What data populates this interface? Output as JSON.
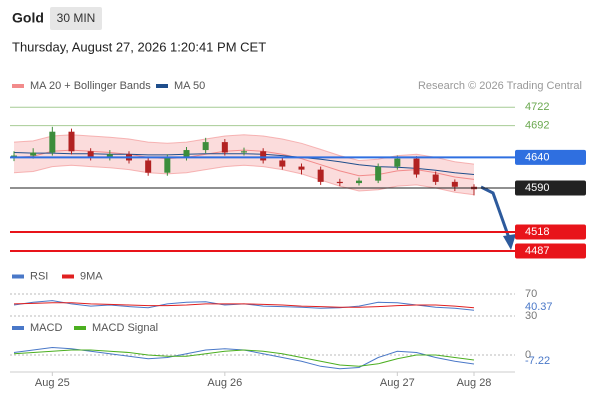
{
  "header": {
    "symbol": "Gold",
    "timeframe": "30 MIN",
    "datetime": "Thursday, August 27, 2026 1:20:41 PM CET"
  },
  "chart_data": [
    {
      "type": "candlestick",
      "credit": "Research © 2026 Trading Central",
      "categories": [
        null,
        null,
        "Aug 25",
        null,
        null,
        null,
        null,
        null,
        null,
        null,
        null,
        "Aug 26",
        null,
        null,
        null,
        null,
        null,
        null,
        null,
        null,
        "Aug 27",
        null,
        null,
        null,
        "Aug 28"
      ],
      "ohlc": [
        [
          4640,
          4650,
          4634,
          4643
        ],
        [
          4643,
          4655,
          4638,
          4648
        ],
        [
          4648,
          4690,
          4643,
          4682
        ],
        [
          4682,
          4687,
          4645,
          4650
        ],
        [
          4650,
          4655,
          4635,
          4640
        ],
        [
          4640,
          4652,
          4635,
          4645
        ],
        [
          4645,
          4650,
          4630,
          4635
        ],
        [
          4635,
          4640,
          4610,
          4615
        ],
        [
          4615,
          4645,
          4610,
          4640
        ],
        [
          4640,
          4657,
          4635,
          4652
        ],
        [
          4652,
          4672,
          4647,
          4665
        ],
        [
          4665,
          4670,
          4643,
          4648
        ],
        [
          4648,
          4656,
          4643,
          4650
        ],
        [
          4650,
          4655,
          4630,
          4635
        ],
        [
          4635,
          4640,
          4620,
          4625
        ],
        [
          4625,
          4630,
          4612,
          4620
        ],
        [
          4620,
          4625,
          4595,
          4600
        ],
        [
          4600,
          4605,
          4593,
          4598
        ],
        [
          4598,
          4607,
          4594,
          4602
        ],
        [
          4602,
          4630,
          4598,
          4625
        ],
        [
          4625,
          4643,
          4620,
          4638
        ],
        [
          4638,
          4642,
          4607,
          4612
        ],
        [
          4612,
          4617,
          4595,
          4600
        ],
        [
          4600,
          4604,
          4585,
          4592
        ],
        [
          4592,
          4596,
          4578,
          4588
        ]
      ],
      "up_color": "#3c8d3c",
      "down_color": "#b22222",
      "series": [
        {
          "name": "MA 20 + Bollinger Bands",
          "color": "#f28b8b",
          "values": [
            4640,
            4642,
            4650,
            4652,
            4650,
            4648,
            4645,
            4640,
            4638,
            4640,
            4645,
            4650,
            4652,
            4650,
            4645,
            4638,
            4628,
            4618,
            4610,
            4612,
            4618,
            4620,
            4615,
            4608,
            4604
          ],
          "upper": [
            4665,
            4667,
            4675,
            4677,
            4675,
            4673,
            4670,
            4665,
            4663,
            4665,
            4670,
            4675,
            4677,
            4675,
            4670,
            4663,
            4653,
            4643,
            4635,
            4637,
            4643,
            4645,
            4640,
            4633,
            4629
          ],
          "lower": [
            4615,
            4617,
            4625,
            4627,
            4625,
            4623,
            4620,
            4615,
            4613,
            4615,
            4620,
            4625,
            4627,
            4625,
            4620,
            4613,
            4603,
            4593,
            4585,
            4587,
            4593,
            4595,
            4590,
            4583,
            4579
          ]
        },
        {
          "name": "MA 50",
          "color": "#1f4e8c",
          "values": [
            4648,
            4647,
            4647,
            4646,
            4646,
            4645,
            4645,
            4644,
            4644,
            4645,
            4646,
            4646,
            4646,
            4645,
            4643,
            4640,
            4637,
            4633,
            4628,
            4625,
            4624,
            4622,
            4619,
            4615,
            4612
          ]
        }
      ],
      "levels": [
        {
          "value": 4722,
          "color": "#6aa84f",
          "box": false
        },
        {
          "value": 4692,
          "color": "#6aa84f",
          "box": false
        },
        {
          "value": 4640,
          "color": "#2f6fe0",
          "box": true
        },
        {
          "value": 4590,
          "color": "#222222",
          "box": true
        },
        {
          "value": 4518,
          "color": "#e8141a",
          "box": true
        },
        {
          "value": 4487,
          "color": "#e8141a",
          "box": true
        }
      ],
      "ylim": [
        4469,
        4742
      ]
    },
    {
      "type": "line",
      "series": [
        {
          "name": "RSI",
          "color": "#4a78c8",
          "values": [
            50,
            55,
            58,
            52,
            48,
            50,
            47,
            45,
            52,
            55,
            56,
            50,
            52,
            48,
            47,
            46,
            44,
            45,
            48,
            55,
            54,
            50,
            46,
            44,
            40.37
          ]
        },
        {
          "name": "9MA",
          "color": "#e02020",
          "values": [
            52,
            53,
            54,
            54,
            52,
            51,
            50,
            49,
            49,
            50,
            52,
            52,
            52,
            51,
            50,
            48,
            47,
            46,
            46,
            47,
            49,
            50,
            50,
            48,
            45
          ]
        }
      ],
      "ylim": [
        20,
        80
      ],
      "yticks": [
        70,
        30
      ]
    },
    {
      "type": "line",
      "series": [
        {
          "name": "MACD",
          "color": "#4a78c8",
          "values": [
            2,
            4,
            6,
            5,
            3,
            1,
            -1,
            -3,
            -2,
            1,
            4,
            5,
            4,
            1,
            -2,
            -5,
            -9,
            -11,
            -10,
            -2,
            3,
            2,
            -2,
            -5,
            -7.22
          ]
        },
        {
          "name": "MACD Signal",
          "color": "#4caf20",
          "values": [
            1,
            2,
            3,
            4,
            4,
            3,
            2,
            0,
            -1,
            -1,
            1,
            3,
            4,
            3,
            1,
            -2,
            -5,
            -8,
            -9,
            -7,
            -3,
            0,
            0,
            -2,
            -4
          ]
        }
      ],
      "ylim": [
        -14,
        12
      ],
      "yticks": [
        0
      ]
    }
  ]
}
